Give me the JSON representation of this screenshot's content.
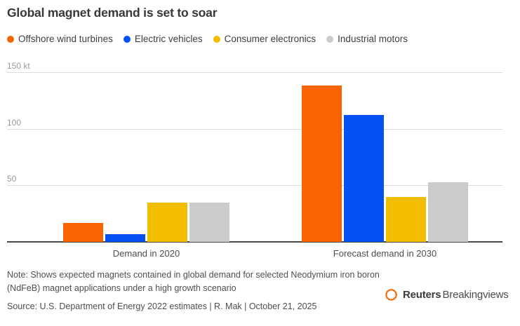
{
  "title": "Global magnet demand is set to soar",
  "legend": [
    {
      "label": "Offshore wind turbines",
      "color": "#FA6400"
    },
    {
      "label": "Electric vehicles",
      "color": "#0450F0"
    },
    {
      "label": "Consumer electronics",
      "color": "#F3BE00"
    },
    {
      "label": "Industrial motors",
      "color": "#CBCBCB"
    }
  ],
  "chart_data": {
    "type": "bar",
    "title": "Global magnet demand is set to soar",
    "unit": "kt",
    "categories": [
      "Demand in 2020",
      "Forecast demand in 2030"
    ],
    "series": [
      {
        "name": "Offshore wind turbines",
        "color": "#FA6400",
        "values": [
          17,
          138
        ]
      },
      {
        "name": "Electric vehicles",
        "color": "#0450F0",
        "values": [
          7,
          112
        ]
      },
      {
        "name": "Consumer electronics",
        "color": "#F3BE00",
        "values": [
          35,
          40
        ]
      },
      {
        "name": "Industrial motors",
        "color": "#CBCBCB",
        "values": [
          35,
          53
        ]
      }
    ],
    "yticks": [
      {
        "value": 150,
        "label": "150 kt"
      },
      {
        "value": 100,
        "label": "100"
      },
      {
        "value": 50,
        "label": "50"
      }
    ],
    "ylim": [
      0,
      155
    ],
    "grid": true,
    "legend_position": "top"
  },
  "footer": {
    "note_line1": "Note: Shows expected magnets contained in global demand for selected Neodymium iron boron",
    "note_line2": "(NdFeB) magnet applications under a high growth scenario",
    "source": "Source: U.S. Department of Energy 2022 estimates | R. Mak | October 21, 2025"
  },
  "branding": {
    "bold": "Reuters",
    "regular": "Breakingviews",
    "dot_color": "#FA6400"
  }
}
